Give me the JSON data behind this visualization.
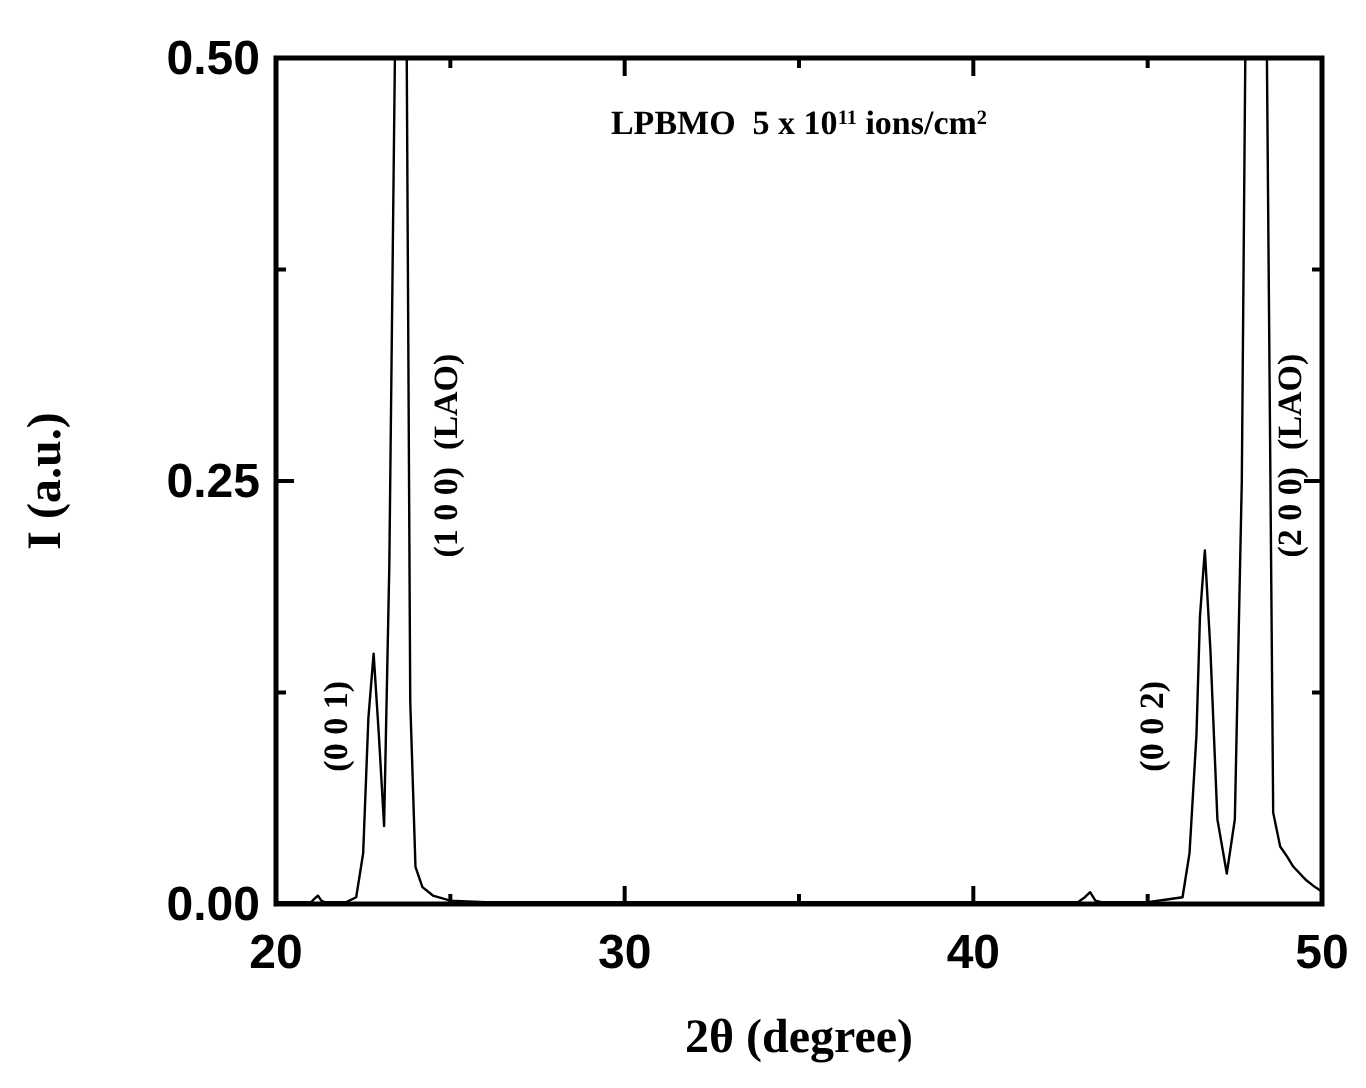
{
  "chart_data": {
    "type": "line",
    "xlabel": "2θ (degree)",
    "ylabel": "I (a.u.)",
    "x": [
      20,
      21,
      21.1,
      21.2,
      21.3,
      21.4,
      22,
      22.3,
      22.5,
      22.65,
      22.8,
      22.95,
      23.1,
      23.25,
      23.41,
      23.6,
      23.75,
      23.85,
      24,
      24.2,
      24.5,
      25,
      26,
      30,
      35,
      40,
      43,
      43.2,
      43.35,
      43.5,
      43.7,
      45,
      46,
      46.2,
      46.4,
      46.5,
      46.64,
      46.8,
      47,
      47.27,
      47.5,
      47.7,
      47.8,
      48.1,
      48.42,
      48.6,
      48.8,
      49,
      49.18,
      49.55,
      49.8,
      49.95
    ],
    "series": [
      {
        "color": "#000000",
        "values": [
          0.001,
          0.001,
          0.003,
          0.005,
          0.002,
          0.001,
          0.001,
          0.004,
          0.03,
          0.11,
          0.148,
          0.1,
          0.046,
          0.2,
          0.5,
          null,
          0.5,
          0.12,
          0.022,
          0.01,
          0.005,
          0.002,
          0.001,
          0.001,
          0.001,
          0.001,
          0.001,
          0.004,
          0.007,
          0.002,
          0.001,
          0.001,
          0.004,
          0.03,
          0.1,
          0.17,
          0.209,
          0.15,
          0.05,
          0.018,
          0.05,
          0.25,
          0.5,
          null,
          0.5,
          0.054,
          0.034,
          0.028,
          0.022,
          0.014,
          0.01,
          0.008
        ]
      }
    ],
    "xlim": [
      20,
      50
    ],
    "xticks": [
      20,
      {
        "value": 25,
        "label": null
      },
      30,
      {
        "value": 35,
        "label": null
      },
      40,
      {
        "value": 45,
        "label": null
      },
      50
    ],
    "ylim": [
      0,
      0.5
    ],
    "yticks": [
      {
        "value": 0,
        "label": "0.00"
      },
      {
        "value": 0.125,
        "label": null
      },
      {
        "value": 0.25,
        "label": "0.25"
      },
      {
        "value": 0.375,
        "label": null
      },
      {
        "value": 0.5,
        "label": "0.50"
      }
    ],
    "grid": false,
    "line_style": "solid",
    "marker": "none",
    "annotations": [
      "LPBMO  5 x 10$^{11}$ ions/cm$^{2}$",
      "(0 0 1)",
      "(1 0 0)  (LAO)",
      "(0 0 2)",
      "(2 0 0)  (LAO)"
    ]
  }
}
